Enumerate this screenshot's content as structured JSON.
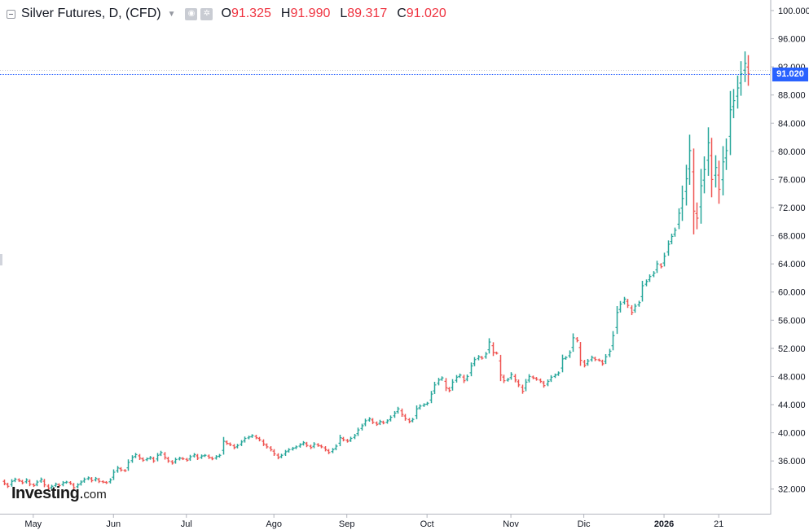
{
  "header": {
    "title": "Silver Futures, D, (CFD)",
    "ohlc": [
      {
        "key": "O",
        "value": "91.325"
      },
      {
        "key": "H",
        "value": "91.990"
      },
      {
        "key": "L",
        "value": "89.317"
      },
      {
        "key": "C",
        "value": "91.020"
      }
    ]
  },
  "price_tag": "91.020",
  "logo": {
    "main": "Investing",
    "suffix": "com"
  },
  "colors": {
    "up": "#26a69a",
    "down": "#ef5350",
    "price_line": "#2962ff"
  },
  "chart_data": {
    "type": "ohlc",
    "title": "Silver Futures, D, (CFD)",
    "ylim": [
      28.5,
      101.5
    ],
    "y_ticks": [
      "32.000",
      "36.000",
      "40.000",
      "44.000",
      "48.000",
      "52.000",
      "56.000",
      "60.000",
      "64.000",
      "68.000",
      "72.000",
      "76.000",
      "80.000",
      "84.000",
      "88.000",
      "92.000",
      "96.000",
      "100.000"
    ],
    "x_ticks": [
      {
        "label": "May",
        "index": 8
      },
      {
        "label": "Jun",
        "index": 30
      },
      {
        "label": "Jul",
        "index": 50
      },
      {
        "label": "Ago",
        "index": 74
      },
      {
        "label": "Sep",
        "index": 94
      },
      {
        "label": "Oct",
        "index": 116
      },
      {
        "label": "Nov",
        "index": 139
      },
      {
        "label": "Dic",
        "index": 159
      },
      {
        "label": "2026",
        "index": 181
      },
      {
        "label": "21",
        "index": 196
      }
    ],
    "last_price": 91.02,
    "closes": [
      32.8,
      32.4,
      33.1,
      33.4,
      33.2,
      32.9,
      33.3,
      32.7,
      32.5,
      33.0,
      33.4,
      32.6,
      32.1,
      32.4,
      32.7,
      32.5,
      32.9,
      33.0,
      32.8,
      32.2,
      32.6,
      33.0,
      33.4,
      33.6,
      33.2,
      33.5,
      33.1,
      33.0,
      32.9,
      33.3,
      34.4,
      35.0,
      34.7,
      34.6,
      35.8,
      36.5,
      36.9,
      36.4,
      36.1,
      36.3,
      36.5,
      36.0,
      36.8,
      37.2,
      36.5,
      36.0,
      35.7,
      36.2,
      36.4,
      36.3,
      36.1,
      36.6,
      36.9,
      36.4,
      36.7,
      36.8,
      36.5,
      36.3,
      36.6,
      36.8,
      38.8,
      38.5,
      38.3,
      37.9,
      38.2,
      38.7,
      39.2,
      39.4,
      39.6,
      39.3,
      39.0,
      38.4,
      38.0,
      37.6,
      37.0,
      36.5,
      36.8,
      37.3,
      37.6,
      37.8,
      38.0,
      38.3,
      38.6,
      38.2,
      37.9,
      38.4,
      38.2,
      38.0,
      37.6,
      37.2,
      37.6,
      38.1,
      39.3,
      39.0,
      38.8,
      39.2,
      39.6,
      40.4,
      41.0,
      41.7,
      42.0,
      41.5,
      41.2,
      41.6,
      41.4,
      41.7,
      42.2,
      42.8,
      43.4,
      42.6,
      42.0,
      41.6,
      41.9,
      43.4,
      43.8,
      44.0,
      44.2,
      45.5,
      46.8,
      47.5,
      47.8,
      46.4,
      46.0,
      47.2,
      47.9,
      48.2,
      47.4,
      48.0,
      49.5,
      50.4,
      50.8,
      50.6,
      51.2,
      52.9,
      51.4,
      51.3,
      48.2,
      47.4,
      47.6,
      48.3,
      47.5,
      46.8,
      45.9,
      47.2,
      48.0,
      47.8,
      47.6,
      47.3,
      46.7,
      47.3,
      47.9,
      48.2,
      48.5,
      50.5,
      50.7,
      51.4,
      53.5,
      53.1,
      50.3,
      49.6,
      50.2,
      50.7,
      50.4,
      50.3,
      49.8,
      50.8,
      51.6,
      53.8,
      57.1,
      58.3,
      59.0,
      58.1,
      57.1,
      58.0,
      58.5,
      60.9,
      61.5,
      62.2,
      62.7,
      64.0,
      63.6,
      65.1,
      66.8,
      67.9,
      68.8,
      71.2,
      73.3,
      76.1,
      80.1,
      71.5,
      70.5,
      75.1,
      77.4,
      81.2,
      76.0,
      77.7,
      74.6,
      78.5,
      80.1,
      85.9,
      87.2,
      89.0,
      91.0,
      92.5,
      91.0
    ]
  }
}
